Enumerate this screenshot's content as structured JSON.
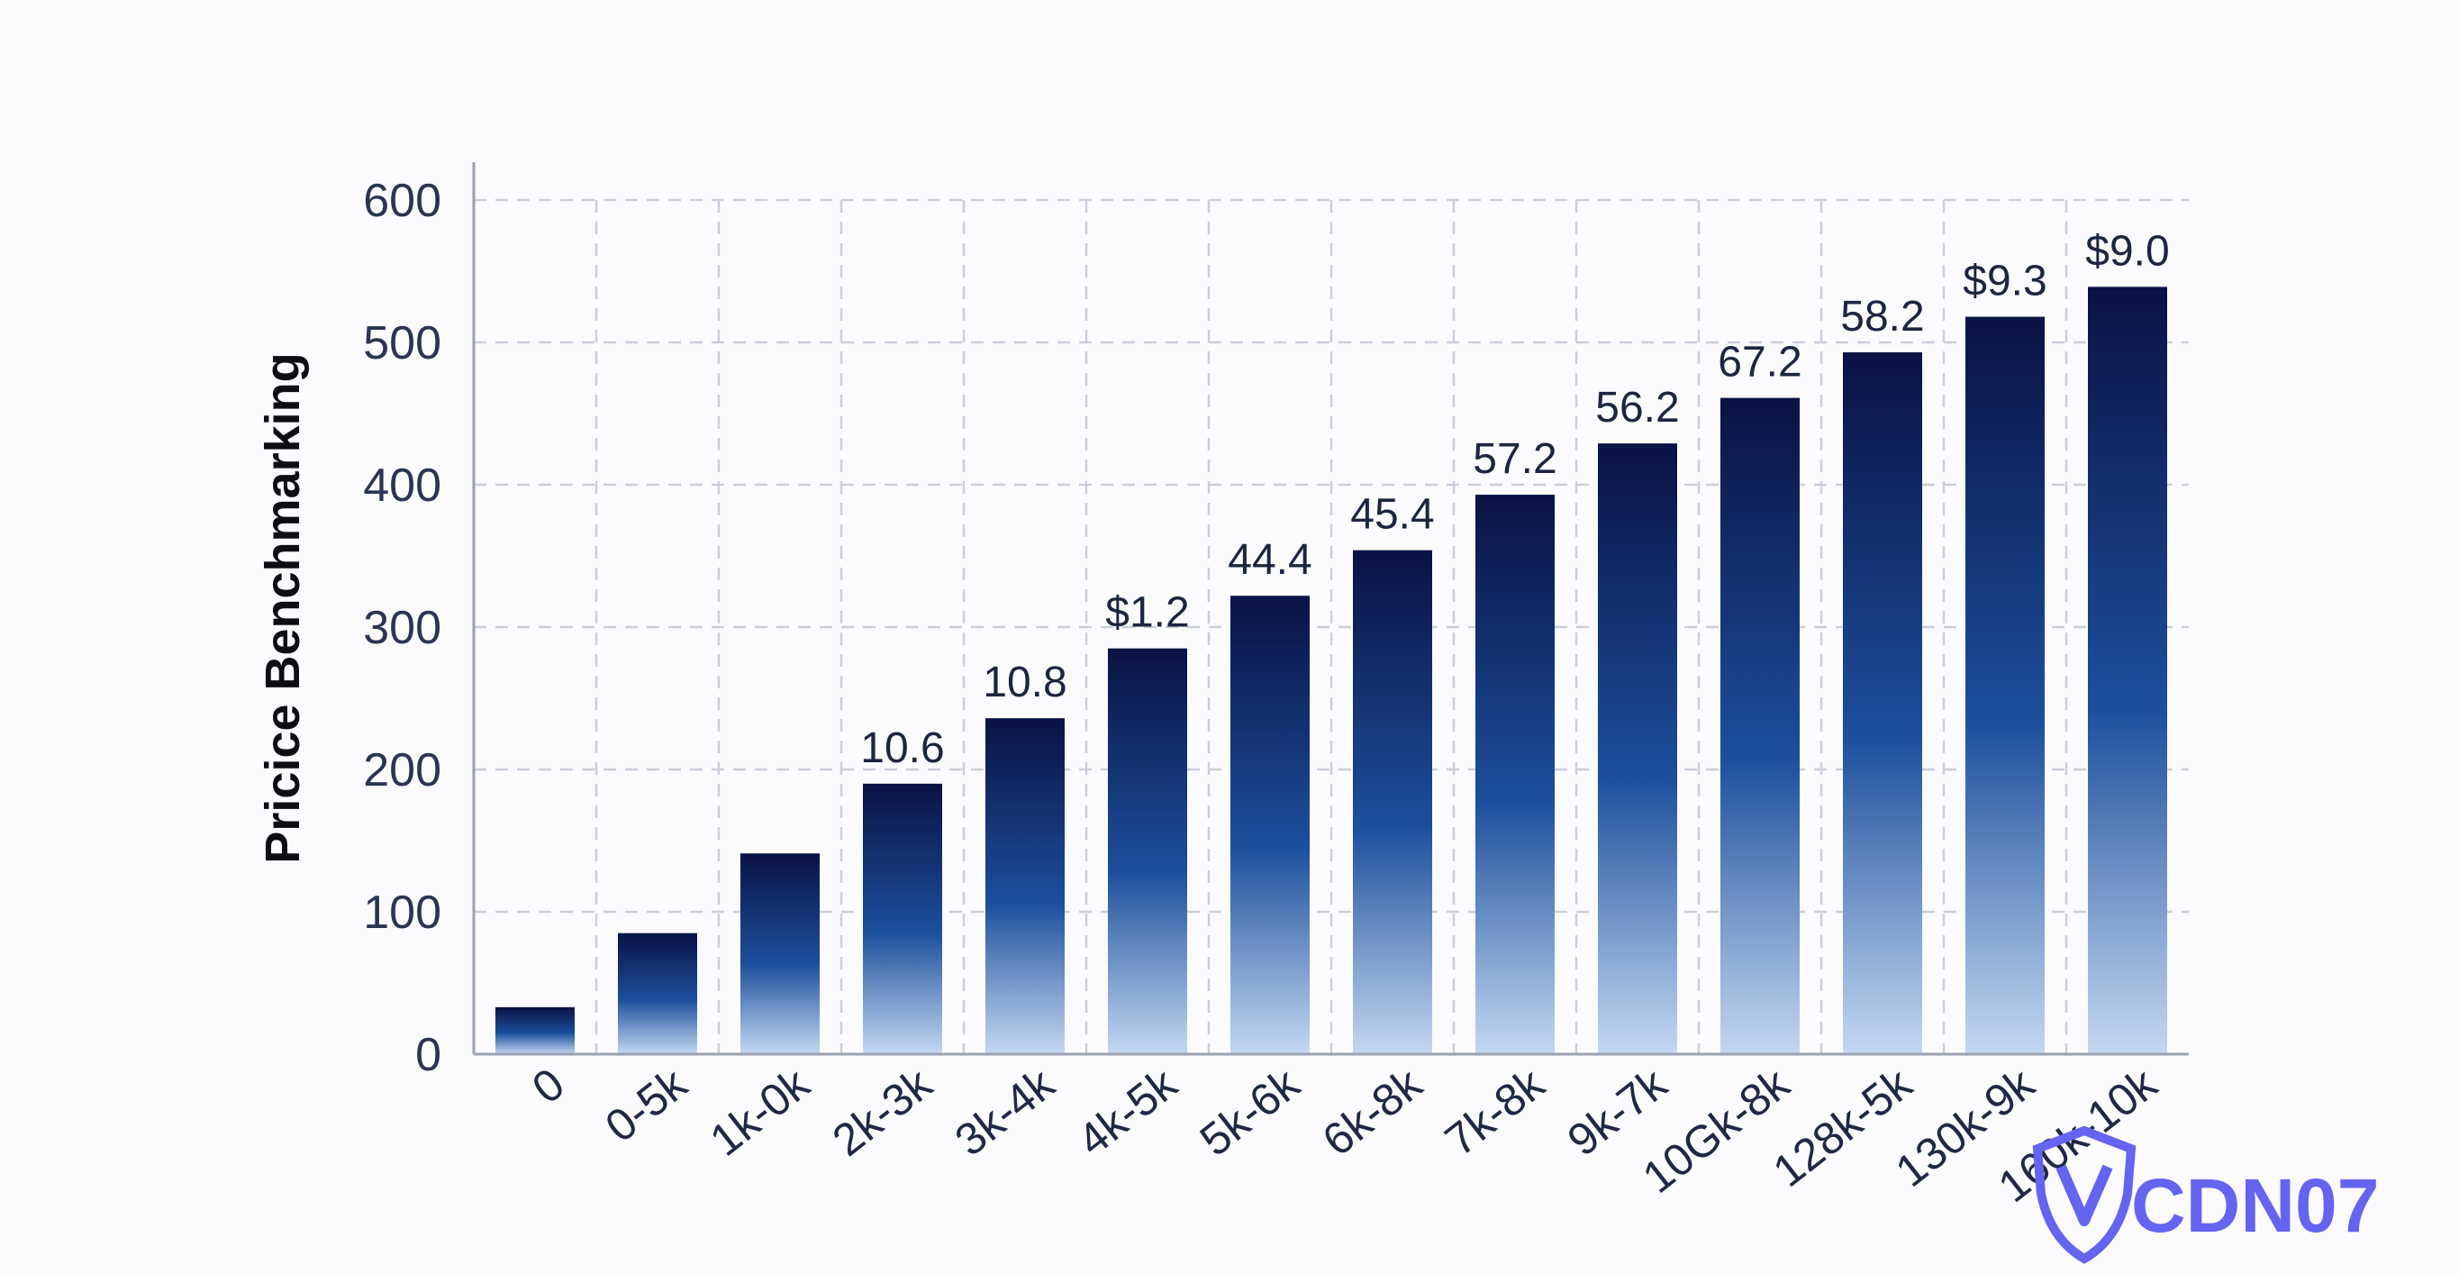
{
  "chart_data": {
    "type": "bar",
    "title": "",
    "xlabel": "",
    "ylabel": "Pricice Benchmarking",
    "ylim": [
      0,
      600
    ],
    "yticks": [
      0,
      100,
      200,
      300,
      400,
      500,
      600
    ],
    "grid": true,
    "categories": [
      "0",
      "0-5k",
      "1k-0k",
      "2k-3k",
      "3k-4k",
      "4k-5k",
      "5k-6k",
      "6k-8k",
      "7k-8k",
      "9k-7k",
      "10Gk-8k",
      "128k-5k",
      "130k-9k",
      "160k-10k"
    ],
    "values": [
      33,
      85,
      141,
      190,
      236,
      285,
      322,
      354,
      393,
      429,
      461,
      493,
      518,
      539
    ],
    "data_labels": [
      "",
      "",
      "",
      "10.6",
      "10.8",
      "$1.2",
      "44.4",
      "45.4",
      "57.2",
      "56.2",
      "67.2",
      "58.2",
      "$9.3",
      "$9.0"
    ],
    "colors": {
      "bar_top": "#0a1244",
      "bar_mid": "#1c4f9c",
      "bar_bottom": "#c4d8f2"
    }
  },
  "watermark": {
    "text": "CDN07",
    "icon": "shield-icon",
    "color": "#6464f0"
  }
}
